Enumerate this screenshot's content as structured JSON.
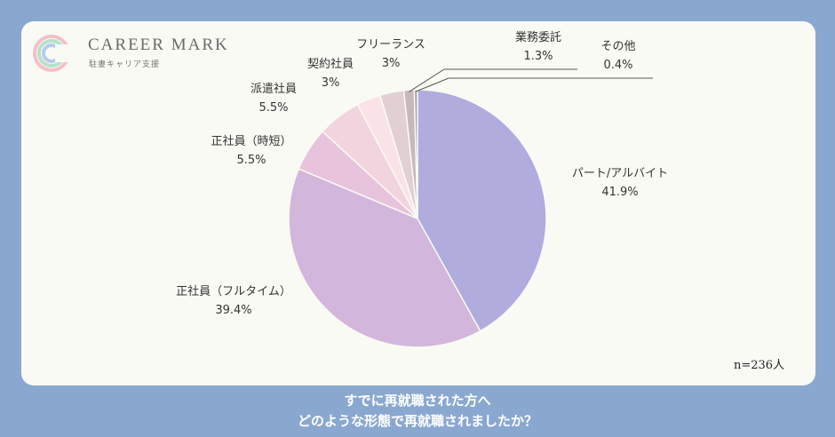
{
  "brand": {
    "name": "CAREER MARK",
    "tagline": "駐妻キャリア支援"
  },
  "footer_title": {
    "line1": "すでに再就職された方へ",
    "line2": "どのような形態で再就職されましたか？"
  },
  "sample_size": "n=236人",
  "chart_data": {
    "type": "pie",
    "title": "",
    "slices": [
      {
        "label": "パート/アルバイト",
        "value": 41.9,
        "display": "41.9%",
        "color": "#b0acdd"
      },
      {
        "label": "正社員（フルタイム）",
        "value": 39.4,
        "display": "39.4%",
        "color": "#d2b6db"
      },
      {
        "label": "正社員（時短）",
        "value": 5.5,
        "display": "5.5%",
        "color": "#e8c3dc"
      },
      {
        "label": "派遣社員",
        "value": 5.5,
        "display": "5.5%",
        "color": "#f2d4df"
      },
      {
        "label": "契約社員",
        "value": 3,
        "display": "3%",
        "color": "#f9e3e6"
      },
      {
        "label": "フリーランス",
        "value": 3,
        "display": "3%",
        "color": "#e1cfd3"
      },
      {
        "label": "業務委託",
        "value": 1.3,
        "display": "1.3%",
        "color": "#c7b8bb"
      },
      {
        "label": "その他",
        "value": 0.4,
        "display": "0.4%",
        "color": "#a79ea0"
      }
    ]
  }
}
